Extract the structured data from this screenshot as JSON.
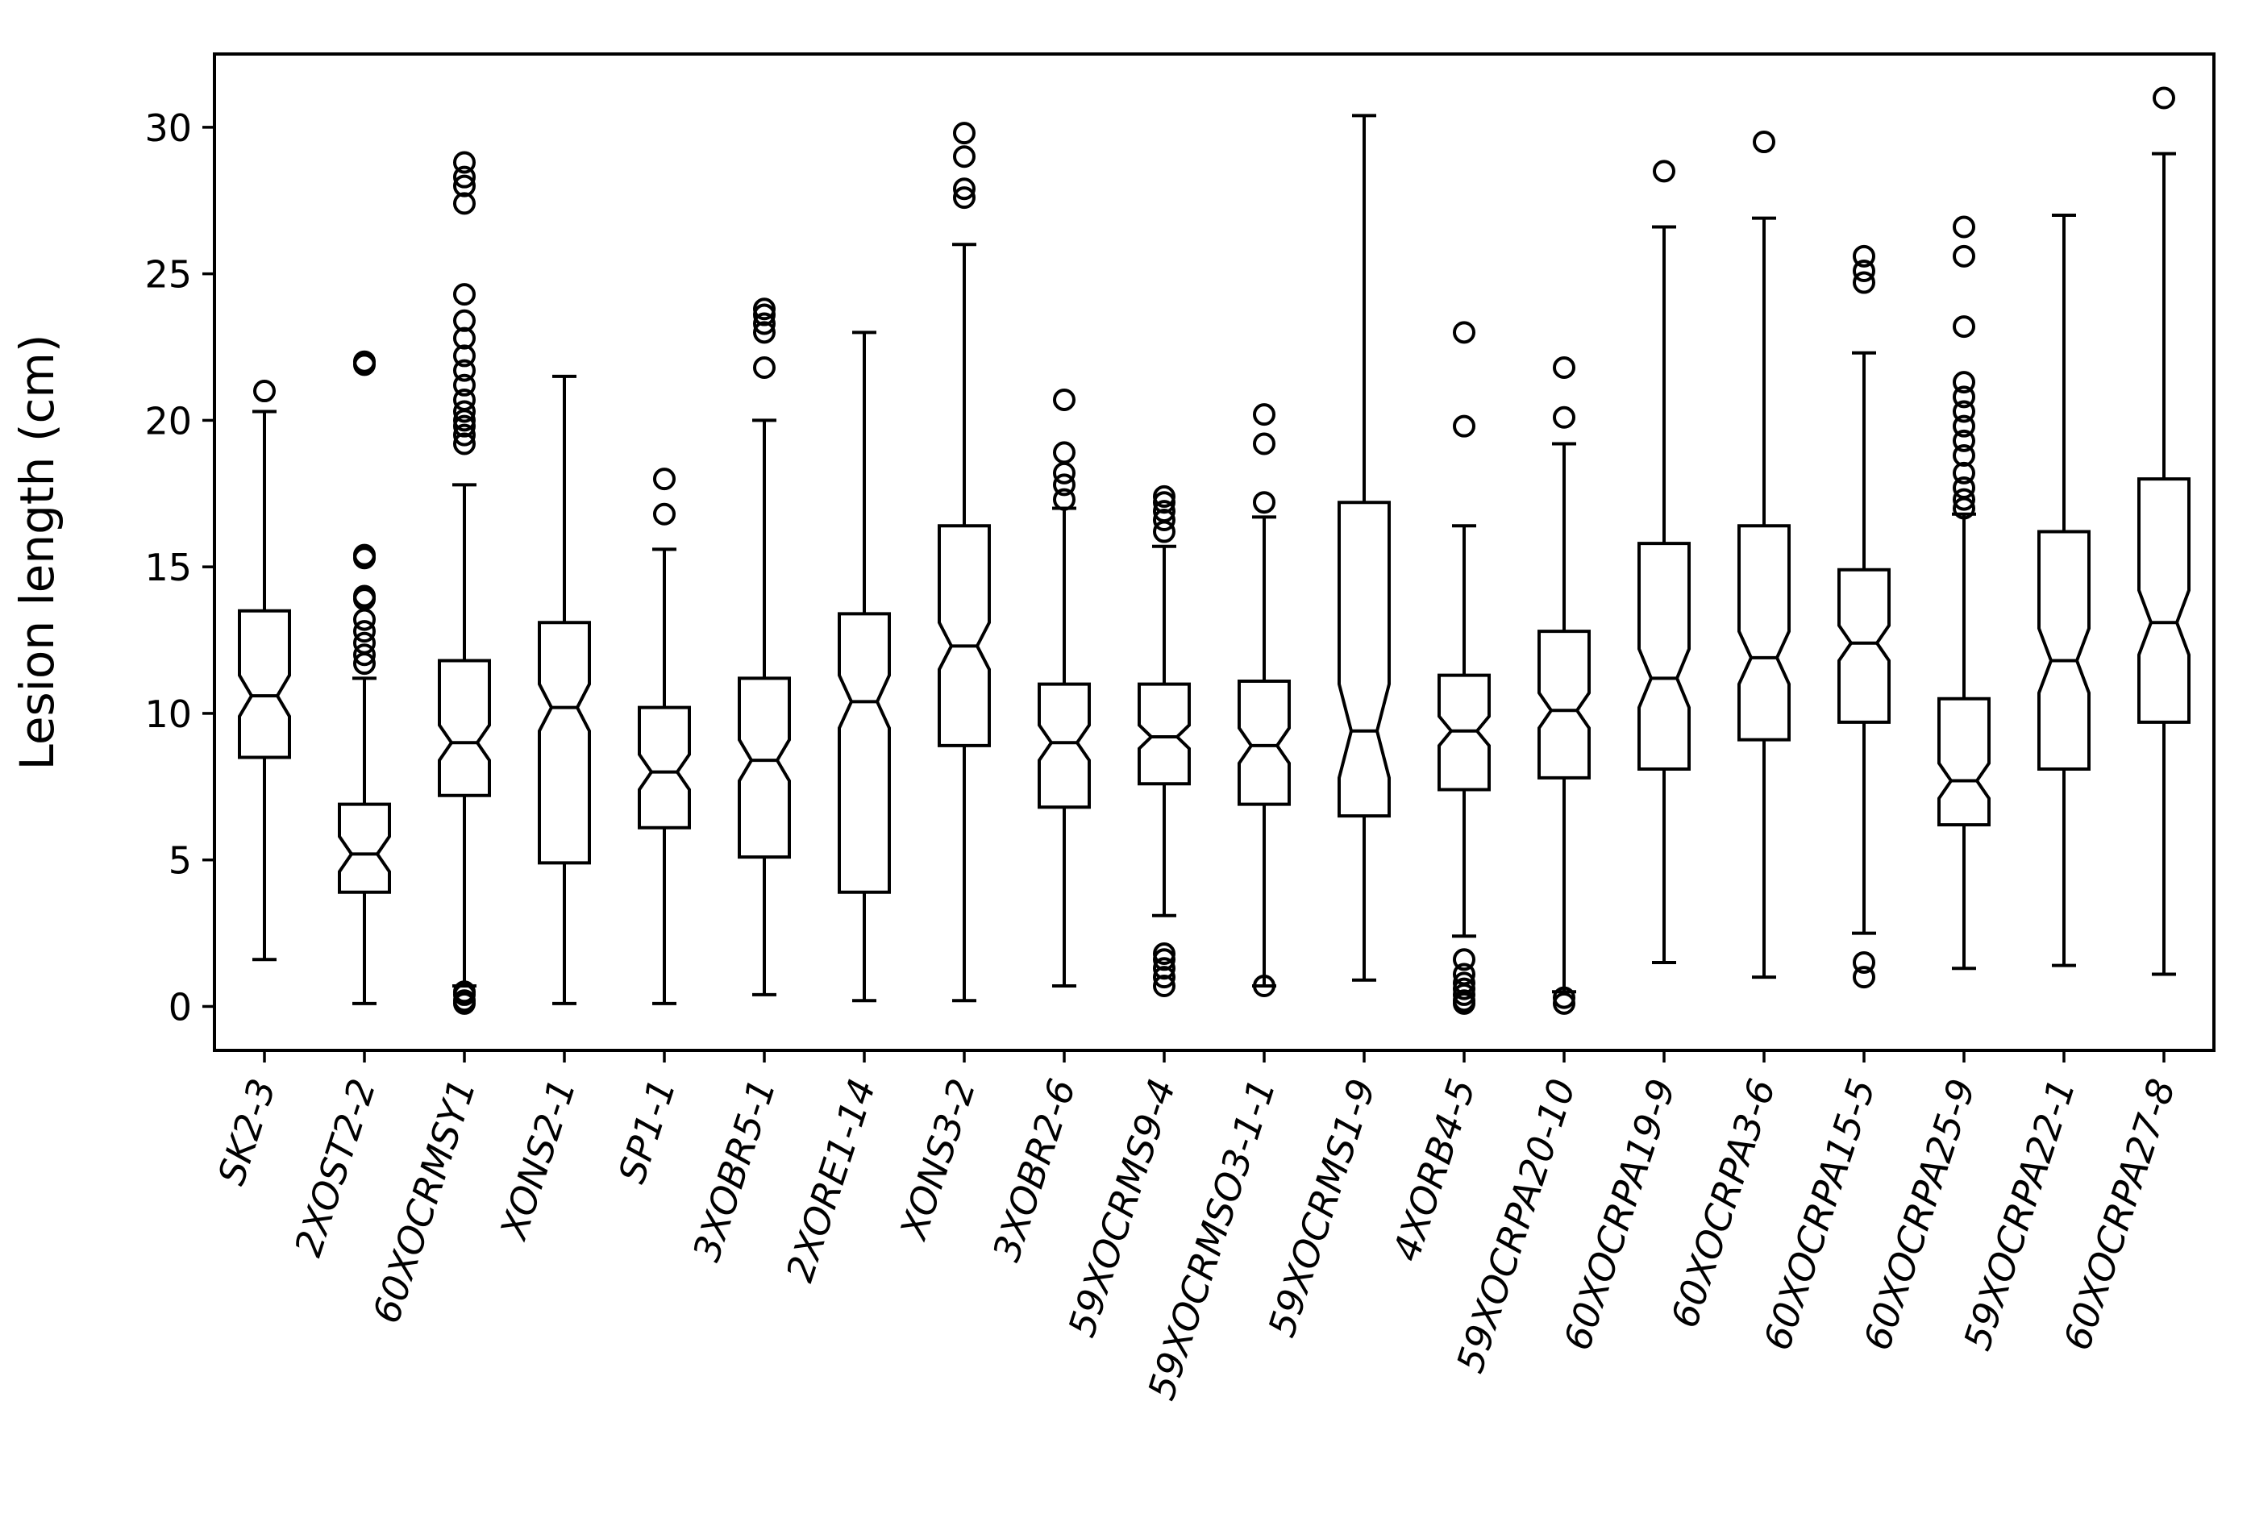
{
  "chart_data": {
    "type": "boxplot",
    "notched": true,
    "title": "",
    "xlabel": "",
    "ylabel": "Lesion length (cm)",
    "ylim": [
      -1.5,
      32.5
    ],
    "yticks": [
      0,
      5,
      10,
      15,
      20,
      25,
      30
    ],
    "grid": false,
    "categories": [
      "SK2-3",
      "2XOST2-2",
      "60XOCRMSY1",
      "XONS2-1",
      "SP1-1",
      "3XOBR5-1",
      "2XORE1-14",
      "XONS3-2",
      "3XOBR2-6",
      "59XOCRMS9-4",
      "59XOCRMSO3-1-1",
      "59XOCRMS1-9",
      "4XORB4-5",
      "59XOCRPA20-10",
      "60XOCRPA19-9",
      "60XOCRPA3-6",
      "60XOCRPA15-5",
      "60XOCRPA25-9",
      "59XOCRPA22-1",
      "60XOCRPA27-8"
    ],
    "boxes": [
      {
        "q1": 8.5,
        "median": 10.6,
        "q3": 13.5,
        "whislo": 1.6,
        "whishi": 20.3,
        "notch_lo": 9.9,
        "notch_hi": 11.3,
        "fliers": [
          21.0
        ]
      },
      {
        "q1": 3.9,
        "median": 5.2,
        "q3": 6.9,
        "whislo": 0.1,
        "whishi": 11.2,
        "notch_lo": 4.6,
        "notch_hi": 5.8,
        "fliers": [
          11.7,
          12.0,
          12.4,
          12.8,
          13.2,
          13.9,
          14.0,
          15.3,
          15.4,
          21.9,
          22.0
        ]
      },
      {
        "q1": 7.2,
        "median": 9.0,
        "q3": 11.8,
        "whislo": 0.7,
        "whishi": 17.8,
        "notch_lo": 8.4,
        "notch_hi": 9.6,
        "fliers": [
          0.1,
          0.2,
          0.4,
          0.5,
          19.2,
          19.5,
          19.8,
          20.0,
          20.3,
          20.7,
          21.2,
          21.7,
          22.2,
          22.8,
          23.4,
          24.3,
          27.4,
          28.0,
          28.3,
          28.8
        ]
      },
      {
        "q1": 4.9,
        "median": 10.2,
        "q3": 13.1,
        "whislo": 0.1,
        "whishi": 21.5,
        "notch_lo": 9.4,
        "notch_hi": 11.0,
        "fliers": []
      },
      {
        "q1": 6.1,
        "median": 8.0,
        "q3": 10.2,
        "whislo": 0.1,
        "whishi": 15.6,
        "notch_lo": 7.4,
        "notch_hi": 8.6,
        "fliers": [
          16.8,
          18.0
        ]
      },
      {
        "q1": 5.1,
        "median": 8.4,
        "q3": 11.2,
        "whislo": 0.4,
        "whishi": 20.0,
        "notch_lo": 7.7,
        "notch_hi": 9.1,
        "fliers": [
          21.8,
          23.0,
          23.3,
          23.6,
          23.8
        ]
      },
      {
        "q1": 3.9,
        "median": 10.4,
        "q3": 13.4,
        "whislo": 0.2,
        "whishi": 23.0,
        "notch_lo": 9.5,
        "notch_hi": 11.3,
        "fliers": []
      },
      {
        "q1": 8.9,
        "median": 12.3,
        "q3": 16.4,
        "whislo": 0.2,
        "whishi": 26.0,
        "notch_lo": 11.5,
        "notch_hi": 13.1,
        "fliers": [
          27.6,
          27.9,
          29.0,
          29.8
        ]
      },
      {
        "q1": 6.8,
        "median": 9.0,
        "q3": 11.0,
        "whislo": 0.7,
        "whishi": 17.0,
        "notch_lo": 8.4,
        "notch_hi": 9.6,
        "fliers": [
          17.3,
          17.8,
          18.2,
          18.9,
          20.7
        ]
      },
      {
        "q1": 7.6,
        "median": 9.2,
        "q3": 11.0,
        "whislo": 3.1,
        "whishi": 15.7,
        "notch_lo": 8.8,
        "notch_hi": 9.6,
        "fliers": [
          0.7,
          1.0,
          1.3,
          1.6,
          1.8,
          16.2,
          16.6,
          16.9,
          17.2,
          17.4
        ]
      },
      {
        "q1": 6.9,
        "median": 8.9,
        "q3": 11.1,
        "whislo": 0.7,
        "whishi": 16.7,
        "notch_lo": 8.3,
        "notch_hi": 9.5,
        "fliers": [
          0.7,
          17.2,
          19.2,
          20.2
        ]
      },
      {
        "q1": 6.5,
        "median": 9.4,
        "q3": 17.2,
        "whislo": 0.9,
        "whishi": 30.4,
        "notch_lo": 7.8,
        "notch_hi": 11.0,
        "fliers": []
      },
      {
        "q1": 7.4,
        "median": 9.4,
        "q3": 11.3,
        "whislo": 2.4,
        "whishi": 16.4,
        "notch_lo": 8.9,
        "notch_hi": 9.9,
        "fliers": [
          0.1,
          0.2,
          0.4,
          0.6,
          0.8,
          1.1,
          1.6,
          19.8,
          23.0
        ]
      },
      {
        "q1": 7.8,
        "median": 10.1,
        "q3": 12.8,
        "whislo": 0.5,
        "whishi": 19.2,
        "notch_lo": 9.5,
        "notch_hi": 10.7,
        "fliers": [
          0.1,
          0.3,
          20.1,
          21.8
        ]
      },
      {
        "q1": 8.1,
        "median": 11.2,
        "q3": 15.8,
        "whislo": 1.5,
        "whishi": 26.6,
        "notch_lo": 10.2,
        "notch_hi": 12.2,
        "fliers": [
          28.5
        ]
      },
      {
        "q1": 9.1,
        "median": 11.9,
        "q3": 16.4,
        "whislo": 1.0,
        "whishi": 26.9,
        "notch_lo": 11.0,
        "notch_hi": 12.8,
        "fliers": [
          29.5
        ]
      },
      {
        "q1": 9.7,
        "median": 12.4,
        "q3": 14.9,
        "whislo": 2.5,
        "whishi": 22.3,
        "notch_lo": 11.8,
        "notch_hi": 13.0,
        "fliers": [
          1.0,
          1.5,
          24.7,
          25.1,
          25.6
        ]
      },
      {
        "q1": 6.2,
        "median": 7.7,
        "q3": 10.5,
        "whislo": 1.3,
        "whishi": 16.8,
        "notch_lo": 7.1,
        "notch_hi": 8.3,
        "fliers": [
          17.0,
          17.3,
          17.7,
          18.2,
          18.8,
          19.3,
          19.8,
          20.3,
          20.8,
          21.3,
          23.2,
          25.6,
          26.6
        ]
      },
      {
        "q1": 8.1,
        "median": 11.8,
        "q3": 16.2,
        "whislo": 1.4,
        "whishi": 27.0,
        "notch_lo": 10.7,
        "notch_hi": 12.9,
        "fliers": []
      },
      {
        "q1": 9.7,
        "median": 13.1,
        "q3": 18.0,
        "whislo": 1.1,
        "whishi": 29.1,
        "notch_lo": 12.0,
        "notch_hi": 14.2,
        "fliers": [
          31.0
        ]
      }
    ]
  }
}
